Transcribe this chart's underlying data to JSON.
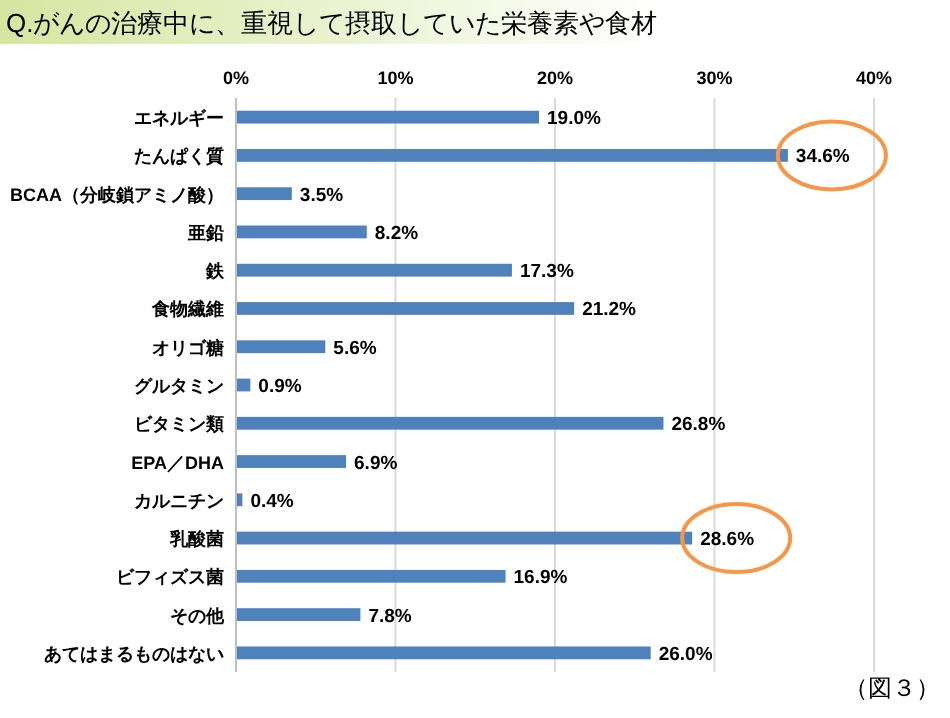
{
  "chart_data": {
    "type": "bar",
    "orientation": "horizontal",
    "title": "Q.がんの治療中に、重視して摂取していた栄養素や食材",
    "categories": [
      "エネルギー",
      "たんぱく質",
      "BCAA（分岐鎖アミノ酸）",
      "亜鉛",
      "鉄",
      "食物繊維",
      "オリゴ糖",
      "グルタミン",
      "ビタミン類",
      "EPA／DHA",
      "カルニチン",
      "乳酸菌",
      "ビフィズス菌",
      "その他",
      "あてはまるものはない"
    ],
    "values": [
      19.0,
      34.6,
      3.5,
      8.2,
      17.3,
      21.2,
      5.6,
      0.9,
      26.8,
      6.9,
      0.4,
      28.6,
      16.9,
      7.8,
      26.0
    ],
    "value_labels": [
      "19.0%",
      "34.6%",
      "3.5%",
      "8.2%",
      "17.3%",
      "21.2%",
      "5.6%",
      "0.9%",
      "26.8%",
      "6.9%",
      "0.4%",
      "28.6%",
      "16.9%",
      "7.8%",
      "26.0%"
    ],
    "color": "#4f81bd",
    "xlim": [
      0,
      40
    ],
    "xticks": [
      {
        "value": 0,
        "label": "0%"
      },
      {
        "value": 10,
        "label": "10%"
      },
      {
        "value": 20,
        "label": "20%"
      },
      {
        "value": 30,
        "label": "30%"
      },
      {
        "value": 40,
        "label": "40%"
      }
    ],
    "grid": "x",
    "annotations": [
      "（図３）"
    ]
  }
}
